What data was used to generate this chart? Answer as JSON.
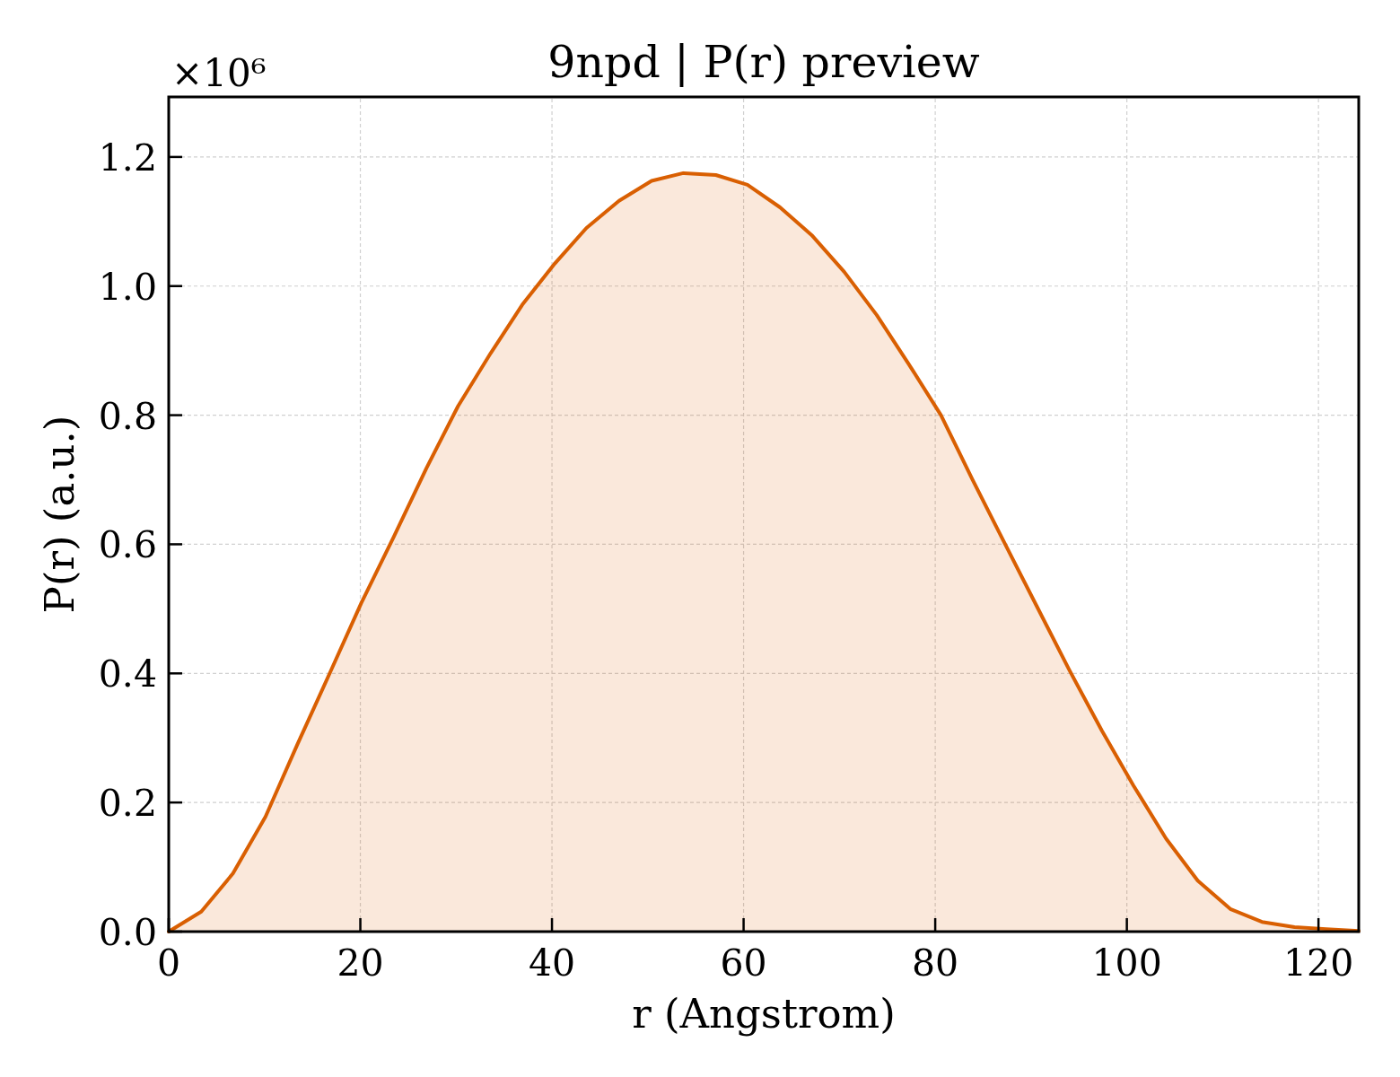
{
  "chart_data": {
    "type": "area",
    "title": "9npd | P(r) preview",
    "xlabel": "r (Angstrom)",
    "ylabel": "P(r) (a.u.)",
    "annotations": [
      "×10⁶"
    ],
    "x": [
      0,
      3.4,
      6.7,
      10.1,
      13.4,
      16.8,
      20.1,
      23.5,
      26.9,
      30.2,
      33.6,
      36.9,
      40.3,
      43.6,
      47.0,
      50.4,
      53.7,
      57.1,
      60.4,
      63.8,
      67.1,
      70.5,
      73.9,
      77.2,
      80.6,
      83.9,
      87.3,
      90.6,
      94.0,
      97.4,
      100.7,
      104.1,
      107.4,
      110.8,
      114.1,
      117.5,
      120.8,
      124.2
    ],
    "series": [
      {
        "color": "#d95f02",
        "values": [
          0,
          0.031,
          0.09,
          0.178,
          0.289,
          0.4,
          0.509,
          0.612,
          0.718,
          0.814,
          0.896,
          0.971,
          1.035,
          1.09,
          1.132,
          1.163,
          1.175,
          1.172,
          1.157,
          1.122,
          1.079,
          1.022,
          0.955,
          0.88,
          0.8,
          0.7,
          0.6,
          0.504,
          0.405,
          0.311,
          0.226,
          0.144,
          0.079,
          0.035,
          0.015,
          0.007,
          0.004,
          0.001
        ]
      }
    ],
    "xlim": [
      0,
      124.2
    ],
    "ylim": [
      0,
      1.293
    ],
    "xticks": [
      0,
      20,
      40,
      60,
      80,
      100,
      120
    ],
    "yticks": [
      {
        "value": 0,
        "label": "0.0"
      },
      0.2,
      0.4,
      0.6,
      0.8,
      {
        "value": 1,
        "label": "1.0"
      },
      1.2
    ],
    "grid": true
  }
}
